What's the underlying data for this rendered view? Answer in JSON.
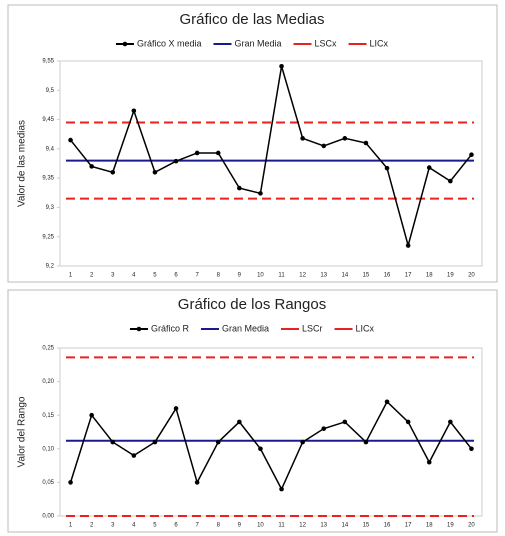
{
  "chart_data": [
    {
      "type": "line",
      "title": "Gráfico de las Medias",
      "y_label": "Valor de las medias",
      "categories": [
        "1",
        "2",
        "3",
        "4",
        "5",
        "6",
        "7",
        "8",
        "9",
        "10",
        "11",
        "12",
        "13",
        "14",
        "15",
        "16",
        "17",
        "18",
        "19",
        "20"
      ],
      "series": [
        {
          "name": "Gráfico X media",
          "color": "#000000",
          "values": [
            9.415,
            9.37,
            9.36,
            9.465,
            9.36,
            9.379,
            9.393,
            9.393,
            9.333,
            9.324,
            9.541,
            9.418,
            9.405,
            9.418,
            9.41,
            9.367,
            9.235,
            9.368,
            9.345,
            9.39
          ]
        }
      ],
      "reference_lines": [
        {
          "name": "Gran Media",
          "color": "#1a1a8c",
          "value": 9.38,
          "dashed": false
        },
        {
          "name": "LSCx",
          "color": "#e8231f",
          "value": 9.445,
          "dashed": true
        },
        {
          "name": "LICx",
          "color": "#e8231f",
          "value": 9.315,
          "dashed": true
        }
      ],
      "ylim": [
        9.2,
        9.55
      ],
      "yticks": [
        {
          "value": 9.2,
          "label": "9,2"
        },
        {
          "value": 9.25,
          "label": "9,25"
        },
        {
          "value": 9.3,
          "label": "9,3"
        },
        {
          "value": 9.35,
          "label": "9,35"
        },
        {
          "value": 9.4,
          "label": "9,4"
        },
        {
          "value": 9.45,
          "label": "9,45"
        },
        {
          "value": 9.5,
          "label": "9,5"
        },
        {
          "value": 9.55,
          "label": "9,55"
        }
      ]
    },
    {
      "type": "line",
      "title": "Gráfico de los Rangos",
      "y_label": "Valor del Rango",
      "categories": [
        "1",
        "2",
        "3",
        "4",
        "5",
        "6",
        "7",
        "8",
        "9",
        "10",
        "11",
        "12",
        "13",
        "14",
        "15",
        "16",
        "17",
        "18",
        "19",
        "20"
      ],
      "series": [
        {
          "name": "Gráfico R",
          "color": "#000000",
          "values": [
            0.05,
            0.15,
            0.11,
            0.09,
            0.11,
            0.16,
            0.05,
            0.11,
            0.14,
            0.1,
            0.04,
            0.11,
            0.13,
            0.14,
            0.11,
            0.17,
            0.14,
            0.08,
            0.14,
            0.1
          ]
        }
      ],
      "reference_lines": [
        {
          "name": "Gran Media",
          "color": "#1a1a8c",
          "value": 0.112,
          "dashed": false
        },
        {
          "name": "LSCr",
          "color": "#e8231f",
          "value": 0.236,
          "dashed": true
        },
        {
          "name": "LICx",
          "color": "#e8231f",
          "value": 0,
          "dashed": true
        }
      ],
      "ylim": [
        0,
        0.25
      ],
      "yticks": [
        {
          "value": 0,
          "label": "0,00"
        },
        {
          "value": 0.05,
          "label": "0,05"
        },
        {
          "value": 0.1,
          "label": "0,10"
        },
        {
          "value": 0.15,
          "label": "0,15"
        },
        {
          "value": 0.2,
          "label": "0,20"
        },
        {
          "value": 0.25,
          "label": "0,25"
        }
      ]
    }
  ]
}
